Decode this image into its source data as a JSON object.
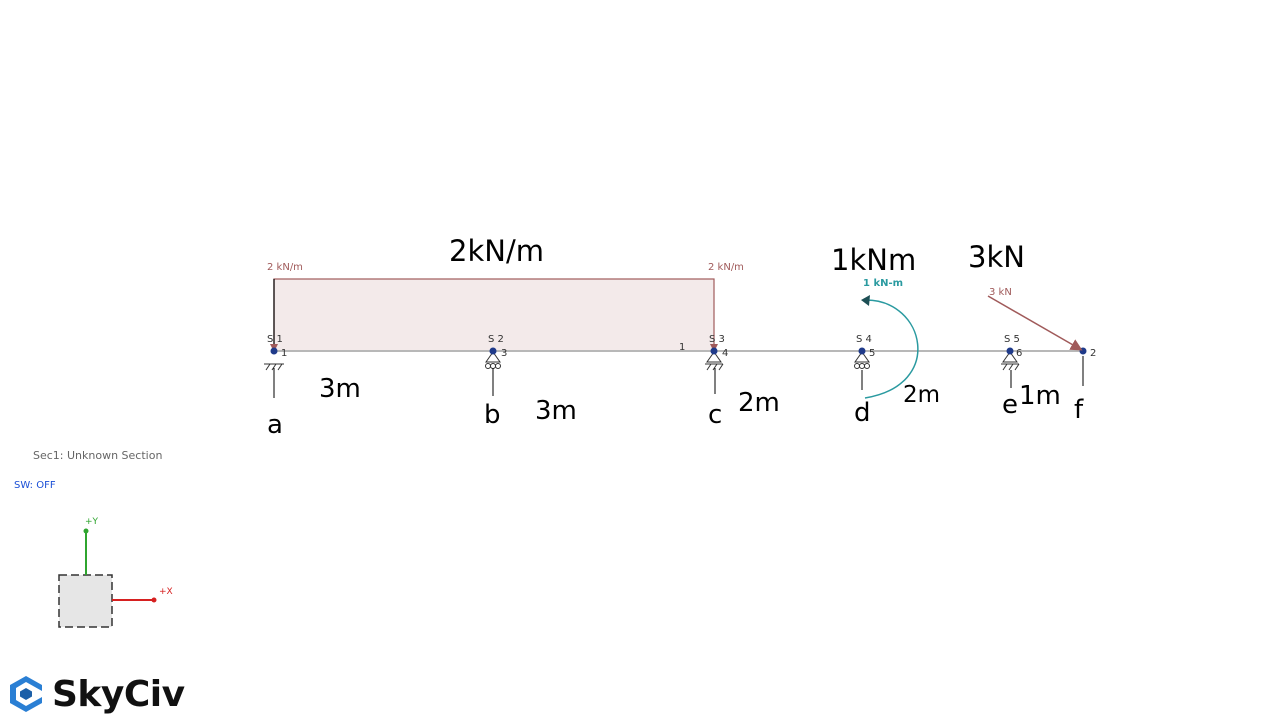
{
  "annotations": {
    "load_udl": "2kN/m",
    "load_moment": "1kNm",
    "load_point": "3kN",
    "span_ab": "3m",
    "span_bc": "3m",
    "span_cd": "2m",
    "span_de": "2m",
    "span_ef": "1m",
    "pt_a": "a",
    "pt_b": "b",
    "pt_c": "c",
    "pt_d": "d",
    "pt_e": "e",
    "pt_f": "f"
  },
  "model_labels": {
    "udl_left": "2 kN/m",
    "udl_right": "2 kN/m",
    "moment": "1 kN-m",
    "point_load": "3 kN",
    "member_id": "1",
    "supports": [
      {
        "label": "S 1",
        "node": "1",
        "type": "fixed"
      },
      {
        "label": "S 2",
        "node": "3",
        "type": "roller"
      },
      {
        "label": "S 3",
        "node": "4",
        "type": "pin"
      },
      {
        "label": "S 4",
        "node": "5",
        "type": "roller"
      },
      {
        "label": "S 5",
        "node": "6",
        "type": "pin"
      }
    ],
    "end_node": "2"
  },
  "legend": {
    "section": "Sec1: Unknown Section",
    "self_weight": "SW: OFF",
    "axis_y": "+Y",
    "axis_x": "+X"
  },
  "brand": {
    "name": "SkyCiv"
  },
  "colors": {
    "beam": "#b8b8b8",
    "load": "#a05a5a",
    "udl_fill": "#f3eaea",
    "moment": "#2a9aa0",
    "node": "#1f3a8a",
    "sw_text": "#1a4fd6",
    "axis_y": "#2fa52f",
    "axis_x": "#d62020",
    "brand_blue": "#2a7fd4"
  }
}
